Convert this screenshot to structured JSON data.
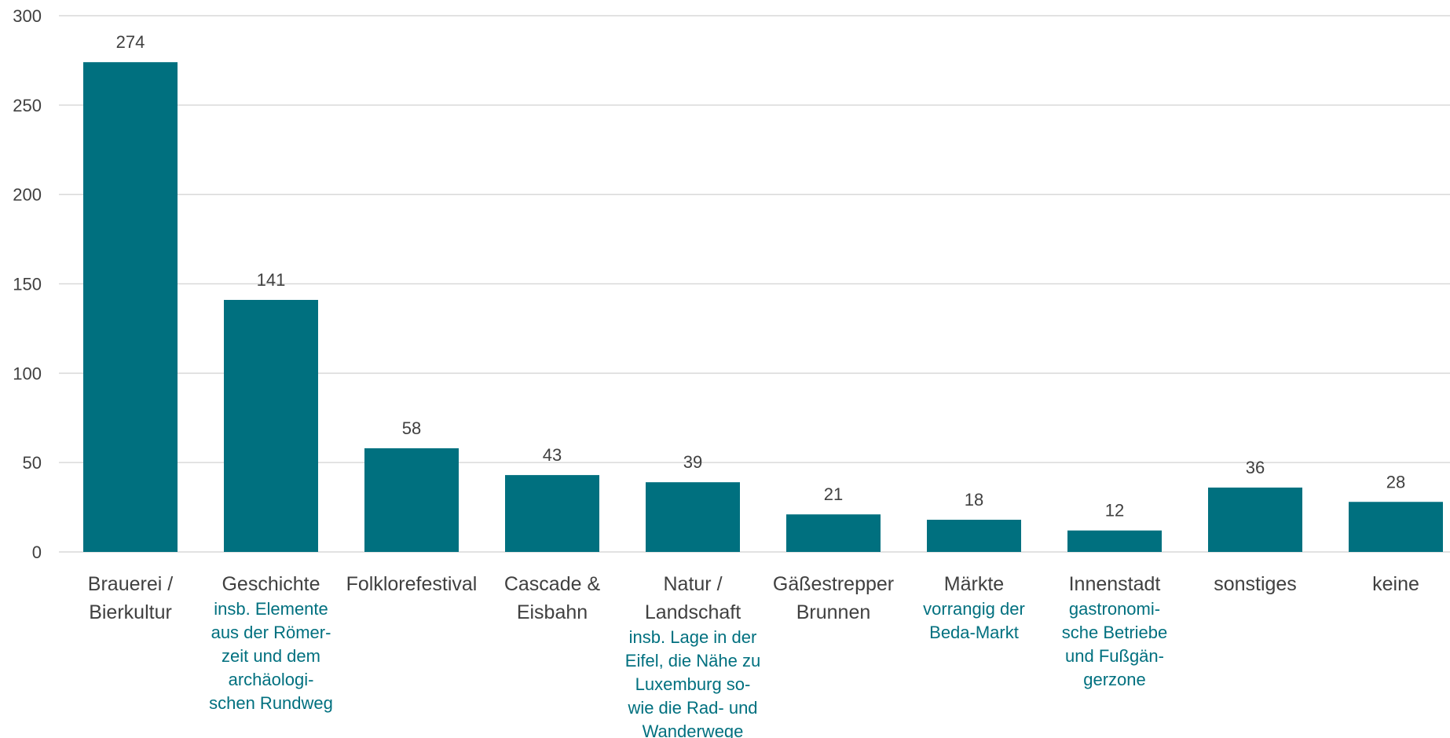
{
  "chart_data": {
    "type": "bar",
    "categories": [
      {
        "label": [
          "Brauerei /",
          "Bierkultur"
        ],
        "sub": []
      },
      {
        "label": [
          "Geschichte"
        ],
        "sub": [
          "insb. Elemente",
          "aus der Römer-",
          "zeit und dem",
          "archäologi-",
          "schen Rundweg"
        ]
      },
      {
        "label": [
          "Folklorefestival"
        ],
        "sub": []
      },
      {
        "label": [
          "Cascade &",
          "Eisbahn"
        ],
        "sub": []
      },
      {
        "label": [
          "Natur /",
          "Landschaft"
        ],
        "sub": [
          "insb. Lage in der",
          "Eifel, die Nähe zu",
          "Luxemburg so-",
          "wie die Rad- und",
          "Wanderwege"
        ]
      },
      {
        "label": [
          "Gäßestrepper",
          "Brunnen"
        ],
        "sub": []
      },
      {
        "label": [
          "Märkte"
        ],
        "sub": [
          "vorrangig der",
          "Beda-Markt"
        ]
      },
      {
        "label": [
          "Innenstadt"
        ],
        "sub": [
          "gastronomi-",
          "sche Betriebe",
          "und Fußgän-",
          "gerzone"
        ]
      },
      {
        "label": [
          "sonstiges"
        ],
        "sub": []
      },
      {
        "label": [
          "keine"
        ],
        "sub": []
      }
    ],
    "values": [
      274,
      141,
      58,
      43,
      39,
      21,
      18,
      12,
      36,
      28
    ],
    "data_labels": [
      "274",
      "141",
      "58",
      "43",
      "39",
      "21",
      "18",
      "12",
      "36",
      "28"
    ],
    "ylim": [
      0,
      300
    ],
    "yticks": [
      "0",
      "50",
      "100",
      "150",
      "200",
      "250",
      "300"
    ],
    "grid": true,
    "legend": "none",
    "title": "",
    "xlabel": "",
    "ylabel": "",
    "colors": {
      "bar": "#00707f",
      "sub_label": "#00707f",
      "text": "#404040",
      "grid": "#d9d9d9"
    }
  }
}
